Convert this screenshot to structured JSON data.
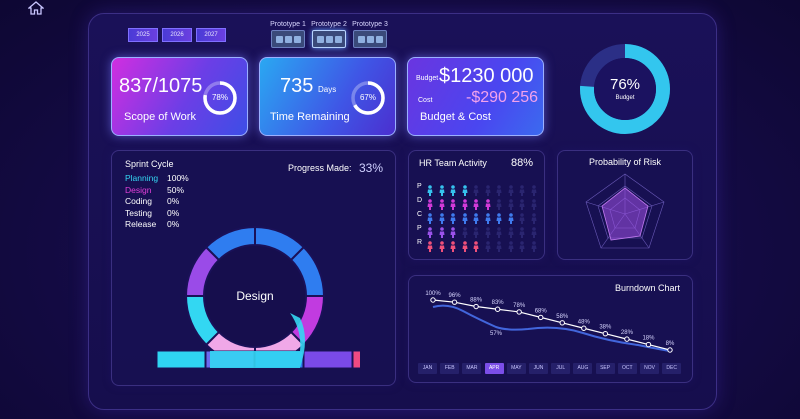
{
  "years": [
    "2025",
    "2026",
    "2027"
  ],
  "prototypes": [
    {
      "label": "Prototype 1"
    },
    {
      "label": "Prototype 2"
    },
    {
      "label": "Prototype 3"
    }
  ],
  "kpi": {
    "scope": {
      "value": "837/1075",
      "percent": "78%",
      "percent_num": 78,
      "caption": "Scope of Work"
    },
    "time": {
      "value": "735",
      "unit": "Days",
      "percent": "67%",
      "percent_num": 67,
      "caption": "Time Remaining"
    },
    "budget": {
      "budget_label": "Budget",
      "budget_value": "$1230 000",
      "cost_label": "Cost",
      "cost_value": "-$290 256",
      "caption": "Budget & Cost"
    }
  },
  "budget_donut": {
    "percent": "76%",
    "percent_num": 76,
    "label": "Budget"
  },
  "sprint": {
    "title": "Sprint Cycle",
    "progress_label": "Progress Made:",
    "progress_value": "33%",
    "phases": [
      {
        "name": "Planning",
        "value": "100%",
        "color": "#34d7f2"
      },
      {
        "name": "Design",
        "value": "50%",
        "color": "#e040d8"
      },
      {
        "name": "Coding",
        "value": "0%",
        "color": "#ffffff"
      },
      {
        "name": "Testing",
        "value": "0%",
        "color": "#ffffff"
      },
      {
        "name": "Release",
        "value": "0%",
        "color": "#ffffff"
      }
    ],
    "center_label": "Design"
  },
  "hr": {
    "title": "HR Team Activity",
    "value": "88%",
    "rows": [
      {
        "label": "P",
        "color": "#36c3ee",
        "filled": 4
      },
      {
        "label": "D",
        "color": "#d23ad8",
        "filled": 6
      },
      {
        "label": "C",
        "color": "#3f7bef",
        "filled": 8
      },
      {
        "label": "P",
        "color": "#9a52ea",
        "filled": 3
      },
      {
        "label": "R",
        "color": "#f0507a",
        "filled": 5
      }
    ]
  },
  "risk": {
    "title": "Probability of Risk"
  },
  "burndown": {
    "title": "Burndown Chart",
    "months": [
      "JAN",
      "FEB",
      "MAR",
      "APR",
      "MAY",
      "JUN",
      "JUL",
      "AUG",
      "SEP",
      "OCT",
      "NOV",
      "DEC"
    ],
    "selected": "APR",
    "labels": [
      "100%",
      "96%",
      "88%",
      "83%",
      "78%",
      "68%",
      "58%",
      "48%",
      "38%",
      "28%",
      "18%",
      "8%"
    ],
    "values": [
      100,
      96,
      88,
      83,
      78,
      68,
      58,
      48,
      38,
      28,
      18,
      8
    ],
    "actual_label": "57%"
  }
}
